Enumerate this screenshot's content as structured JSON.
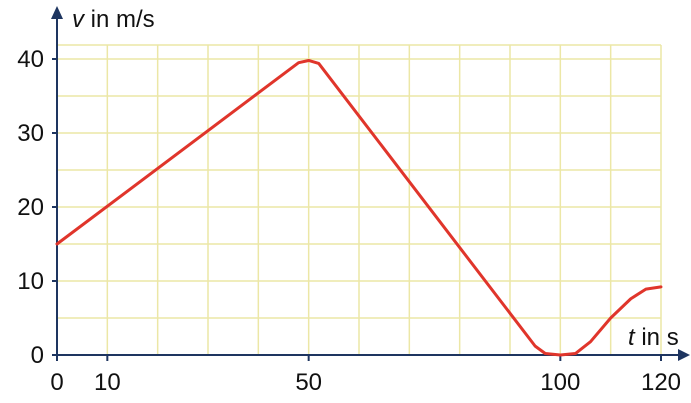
{
  "chart_data": {
    "type": "line",
    "title": "",
    "xlabel": {
      "var": "t",
      "unit": " in s"
    },
    "ylabel": {
      "var": "v",
      "unit": " in m/s"
    },
    "xlim": [
      0,
      120
    ],
    "ylim": [
      0,
      40
    ],
    "grid": true,
    "x_ticks": [
      0,
      10,
      50,
      100,
      120
    ],
    "y_ticks": [
      0,
      10,
      20,
      30,
      40
    ],
    "series": [
      {
        "color": "#e0352b",
        "points": [
          [
            0,
            15
          ],
          [
            48,
            39.5
          ],
          [
            50,
            39.8
          ],
          [
            52,
            39.4
          ],
          [
            95,
            1.2
          ],
          [
            97,
            0.2
          ],
          [
            100,
            0
          ],
          [
            103,
            0.2
          ],
          [
            106,
            1.8
          ],
          [
            110,
            5
          ],
          [
            114,
            7.6
          ],
          [
            117,
            8.9
          ],
          [
            120,
            9.2
          ]
        ]
      }
    ]
  }
}
